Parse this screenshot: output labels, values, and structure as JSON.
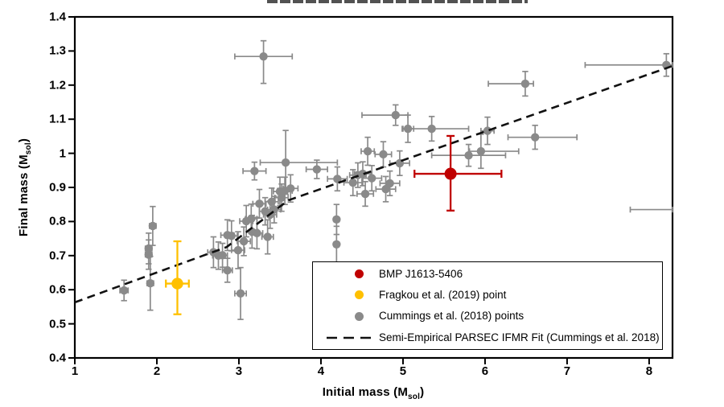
{
  "figure": {
    "x_axis": {
      "title_pre": "Initial mass (M",
      "title_sub": "sol",
      "title_post": ")",
      "tick_labels": [
        "1",
        "2",
        "3",
        "4",
        "5",
        "6",
        "7",
        "8"
      ]
    },
    "y_axis": {
      "title_pre": "Final mass (M",
      "title_sub": "sol",
      "title_post": ")",
      "tick_labels": [
        "0.4",
        "0.5",
        "0.6",
        "0.7",
        "0.8",
        "0.9",
        "1",
        "1.1",
        "1.2",
        "1.3",
        "1.4"
      ]
    },
    "legend": {
      "items": [
        {
          "label": "BMP J1613-5406",
          "marker": "circle",
          "color": "#c00000"
        },
        {
          "label": "Fragkou et al. (2019) point",
          "marker": "circle",
          "color": "#ffc000"
        },
        {
          "label": "Cummings et al. (2018) points",
          "marker": "circle",
          "color": "#8a8a8a"
        },
        {
          "label": "Semi-Empirical PARSEC IFMR Fit (Cummings et al. 2018)",
          "marker": "dash-line",
          "color": "#111111"
        }
      ]
    }
  },
  "chart_data": {
    "type": "scatter",
    "title": "",
    "xlabel": "Initial mass (Msol)",
    "ylabel": "Final mass (Msol)",
    "xlim": [
      1,
      8.285
    ],
    "ylim": [
      0.4,
      1.4
    ],
    "x_ticks": [
      1,
      2,
      3,
      4,
      5,
      6,
      7,
      8
    ],
    "y_ticks": [
      0.4,
      0.5,
      0.6,
      0.7,
      0.8,
      0.9,
      1.0,
      1.1,
      1.2,
      1.3,
      1.4
    ],
    "grid": false,
    "legend_position": "inside lower right",
    "series": [
      {
        "name": "BMP J1613-5406",
        "color": "#c00000",
        "marker_radius": 7.5,
        "points": [
          {
            "x": 5.58,
            "y": 0.94,
            "xlo": 5.14,
            "xhi": 6.2,
            "ylo": 0.832,
            "yhi": 1.051
          }
        ]
      },
      {
        "name": "Fragkou et al. (2019) point",
        "color": "#ffc000",
        "marker_radius": 7.2,
        "points": [
          {
            "x": 2.25,
            "y": 0.618,
            "xlo": 2.11,
            "xhi": 2.39,
            "ylo": 0.528,
            "yhi": 0.742
          }
        ]
      },
      {
        "name": "Cummings et al. (2018) points",
        "color": "#8a8a8a",
        "marker_radius": 5.2,
        "points": [
          {
            "x": 1.6,
            "y": 0.598,
            "xlo": 1.55,
            "xhi": 1.65,
            "ylo": 0.568,
            "yhi": 0.628
          },
          {
            "x": 1.9,
            "y": 0.703,
            "xlo": 1.86,
            "xhi": 1.94,
            "ylo": 0.66,
            "yhi": 0.746
          },
          {
            "x": 1.9,
            "y": 0.721,
            "xlo": 1.86,
            "xhi": 1.94,
            "ylo": 0.676,
            "yhi": 0.766
          },
          {
            "x": 1.95,
            "y": 0.787,
            "xlo": 1.91,
            "xhi": 1.99,
            "ylo": 0.73,
            "yhi": 0.844
          },
          {
            "x": 1.92,
            "y": 0.619,
            "xlo": 1.88,
            "xhi": 1.96,
            "ylo": 0.54,
            "yhi": 0.698
          },
          {
            "x": 2.69,
            "y": 0.71,
            "xlo": 2.62,
            "xhi": 2.76,
            "ylo": 0.665,
            "yhi": 0.755
          },
          {
            "x": 2.75,
            "y": 0.7,
            "xlo": 2.68,
            "xhi": 2.82,
            "ylo": 0.66,
            "yhi": 0.74
          },
          {
            "x": 2.8,
            "y": 0.701,
            "xlo": 2.74,
            "xhi": 2.86,
            "ylo": 0.666,
            "yhi": 0.736
          },
          {
            "x": 2.86,
            "y": 0.76,
            "xlo": 2.78,
            "xhi": 2.94,
            "ylo": 0.715,
            "yhi": 0.805
          },
          {
            "x": 2.91,
            "y": 0.758,
            "xlo": 2.84,
            "xhi": 2.98,
            "ylo": 0.714,
            "yhi": 0.802
          },
          {
            "x": 2.86,
            "y": 0.657,
            "xlo": 2.8,
            "xhi": 2.92,
            "ylo": 0.622,
            "yhi": 0.692
          },
          {
            "x": 2.99,
            "y": 0.716,
            "xlo": 2.91,
            "xhi": 3.07,
            "ylo": 0.662,
            "yhi": 0.77
          },
          {
            "x": 3.06,
            "y": 0.742,
            "xlo": 2.98,
            "xhi": 3.14,
            "ylo": 0.7,
            "yhi": 0.784
          },
          {
            "x": 3.09,
            "y": 0.801,
            "xlo": 3.01,
            "xhi": 3.17,
            "ylo": 0.755,
            "yhi": 0.847
          },
          {
            "x": 3.02,
            "y": 0.589,
            "xlo": 2.95,
            "xhi": 3.09,
            "ylo": 0.513,
            "yhi": 0.665
          },
          {
            "x": 3.16,
            "y": 0.77,
            "xlo": 3.09,
            "xhi": 3.23,
            "ylo": 0.722,
            "yhi": 0.818
          },
          {
            "x": 3.22,
            "y": 0.766,
            "xlo": 3.15,
            "xhi": 3.29,
            "ylo": 0.72,
            "yhi": 0.812
          },
          {
            "x": 3.15,
            "y": 0.808,
            "xlo": 3.08,
            "xhi": 3.22,
            "ylo": 0.765,
            "yhi": 0.851
          },
          {
            "x": 3.25,
            "y": 0.852,
            "xlo": 3.17,
            "xhi": 3.33,
            "ylo": 0.81,
            "yhi": 0.894
          },
          {
            "x": 3.32,
            "y": 0.83,
            "xlo": 3.25,
            "xhi": 3.39,
            "ylo": 0.79,
            "yhi": 0.87
          },
          {
            "x": 3.38,
            "y": 0.82,
            "xlo": 3.3,
            "xhi": 3.46,
            "ylo": 0.78,
            "yhi": 0.86
          },
          {
            "x": 3.43,
            "y": 0.835,
            "xlo": 3.35,
            "xhi": 3.51,
            "ylo": 0.796,
            "yhi": 0.874
          },
          {
            "x": 3.4,
            "y": 0.858,
            "xlo": 3.32,
            "xhi": 3.48,
            "ylo": 0.818,
            "yhi": 0.898
          },
          {
            "x": 3.35,
            "y": 0.755,
            "xlo": 3.28,
            "xhi": 3.42,
            "ylo": 0.705,
            "yhi": 0.805
          },
          {
            "x": 3.5,
            "y": 0.888,
            "xlo": 3.42,
            "xhi": 3.58,
            "ylo": 0.846,
            "yhi": 0.93
          },
          {
            "x": 3.52,
            "y": 0.87,
            "xlo": 3.44,
            "xhi": 3.6,
            "ylo": 0.83,
            "yhi": 0.91
          },
          {
            "x": 3.56,
            "y": 0.89,
            "xlo": 3.47,
            "xhi": 3.65,
            "ylo": 0.85,
            "yhi": 0.93
          },
          {
            "x": 3.63,
            "y": 0.897,
            "xlo": 3.54,
            "xhi": 3.72,
            "ylo": 0.857,
            "yhi": 0.937
          },
          {
            "x": 3.19,
            "y": 0.948,
            "xlo": 3.05,
            "xhi": 3.33,
            "ylo": 0.922,
            "yhi": 0.974
          },
          {
            "x": 3.3,
            "y": 1.284,
            "xlo": 2.95,
            "xhi": 3.65,
            "ylo": 1.205,
            "yhi": 1.33
          },
          {
            "x": 3.57,
            "y": 0.973,
            "xlo": 3.26,
            "xhi": 4.2,
            "ylo": 0.88,
            "yhi": 1.067
          },
          {
            "x": 3.95,
            "y": 0.953,
            "xlo": 3.82,
            "xhi": 4.08,
            "ylo": 0.926,
            "yhi": 0.98
          },
          {
            "x": 4.2,
            "y": 0.925,
            "xlo": 4.08,
            "xhi": 4.32,
            "ylo": 0.89,
            "yhi": 0.96
          },
          {
            "x": 4.19,
            "y": 0.806,
            "xlo": 4.16,
            "xhi": 4.22,
            "ylo": 0.762,
            "yhi": 0.85
          },
          {
            "x": 4.19,
            "y": 0.733,
            "xlo": 4.16,
            "xhi": 4.22,
            "ylo": 0.68,
            "yhi": 0.786
          },
          {
            "x": 4.39,
            "y": 0.914,
            "xlo": 4.28,
            "xhi": 4.5,
            "ylo": 0.876,
            "yhi": 0.952
          },
          {
            "x": 4.45,
            "y": 0.936,
            "xlo": 4.35,
            "xhi": 4.55,
            "ylo": 0.9,
            "yhi": 0.972
          },
          {
            "x": 4.51,
            "y": 0.94,
            "xlo": 4.41,
            "xhi": 4.61,
            "ylo": 0.905,
            "yhi": 0.975
          },
          {
            "x": 4.62,
            "y": 0.927,
            "xlo": 4.5,
            "xhi": 4.74,
            "ylo": 0.89,
            "yhi": 0.964
          },
          {
            "x": 4.54,
            "y": 0.881,
            "xlo": 4.44,
            "xhi": 4.64,
            "ylo": 0.845,
            "yhi": 0.917
          },
          {
            "x": 4.79,
            "y": 0.895,
            "xlo": 4.67,
            "xhi": 4.91,
            "ylo": 0.858,
            "yhi": 0.932
          },
          {
            "x": 4.84,
            "y": 0.912,
            "xlo": 4.72,
            "xhi": 4.96,
            "ylo": 0.876,
            "yhi": 0.948
          },
          {
            "x": 4.57,
            "y": 1.006,
            "xlo": 4.49,
            "xhi": 4.65,
            "ylo": 0.965,
            "yhi": 1.047
          },
          {
            "x": 4.76,
            "y": 0.997,
            "xlo": 4.66,
            "xhi": 4.86,
            "ylo": 0.96,
            "yhi": 1.034
          },
          {
            "x": 4.96,
            "y": 0.971,
            "xlo": 4.84,
            "xhi": 5.08,
            "ylo": 0.935,
            "yhi": 1.007
          },
          {
            "x": 4.91,
            "y": 1.112,
            "xlo": 4.5,
            "xhi": 5.06,
            "ylo": 1.082,
            "yhi": 1.142
          },
          {
            "x": 5.06,
            "y": 1.072,
            "xlo": 4.99,
            "xhi": 5.13,
            "ylo": 1.032,
            "yhi": 1.112
          },
          {
            "x": 5.35,
            "y": 1.072,
            "xlo": 5.0,
            "xhi": 5.8,
            "ylo": 1.036,
            "yhi": 1.108
          },
          {
            "x": 5.8,
            "y": 0.994,
            "xlo": 5.35,
            "xhi": 6.25,
            "ylo": 0.962,
            "yhi": 1.026
          },
          {
            "x": 5.95,
            "y": 1.006,
            "xlo": 5.81,
            "xhi": 6.41,
            "ylo": 0.956,
            "yhi": 1.056
          },
          {
            "x": 6.03,
            "y": 1.066,
            "xlo": 5.95,
            "xhi": 6.11,
            "ylo": 1.026,
            "yhi": 1.106
          },
          {
            "x": 6.49,
            "y": 1.204,
            "xlo": 6.04,
            "xhi": 6.59,
            "ylo": 1.168,
            "yhi": 1.24
          },
          {
            "x": 6.61,
            "y": 1.047,
            "xlo": 6.28,
            "xhi": 7.12,
            "ylo": 1.012,
            "yhi": 1.082
          },
          {
            "x": 8.21,
            "y": 1.259,
            "xlo": 7.22,
            "xhi": 8.285,
            "ylo": 1.226,
            "yhi": 1.292
          },
          {
            "x": 8.285,
            "y": 0.835,
            "xlo": 7.77,
            "xhi": 8.285,
            "ylo": 0.835,
            "yhi": 0.835,
            "marker": false
          }
        ]
      }
    ],
    "fit_line": {
      "name": "Semi-Empirical PARSEC IFMR Fit (Cummings et al. 2018)",
      "style": "dashed",
      "color": "#111111",
      "points": [
        [
          1.0,
          0.563
        ],
        [
          2.85,
          0.725
        ],
        [
          3.6,
          0.862
        ],
        [
          8.285,
          1.256
        ]
      ]
    }
  }
}
